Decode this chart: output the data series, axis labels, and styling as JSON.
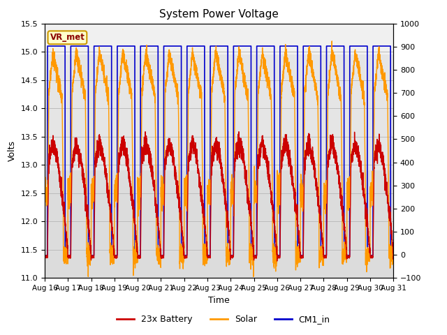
{
  "title": "System Power Voltage",
  "xlabel": "Time",
  "ylabel": "Volts",
  "ylim_left": [
    11.0,
    15.5
  ],
  "ylim_right": [
    -100,
    1000
  ],
  "yticks_left": [
    11.0,
    11.5,
    12.0,
    12.5,
    13.0,
    13.5,
    14.0,
    14.5,
    15.0,
    15.5
  ],
  "yticks_right": [
    -100,
    0,
    100,
    200,
    300,
    400,
    500,
    600,
    700,
    800,
    900,
    1000
  ],
  "xtick_labels": [
    "Aug 16",
    "Aug 17",
    "Aug 18",
    "Aug 19",
    "Aug 20",
    "Aug 21",
    "Aug 22",
    "Aug 23",
    "Aug 24",
    "Aug 25",
    "Aug 26",
    "Aug 27",
    "Aug 28",
    "Aug 29",
    "Aug 30",
    "Aug 31"
  ],
  "legend_labels": [
    "23x Battery",
    "Solar",
    "CM1_in"
  ],
  "legend_colors": [
    "#cc0000",
    "#ff9900",
    "#0000cc"
  ],
  "annotation_text": "VR_met",
  "annotation_color": "#8B0000",
  "annotation_bg": "#ffffcc",
  "grid_color": "#bbbbbb",
  "bg_color": "#dcdcdc",
  "band_color": "#e8e8e8",
  "n_days": 15,
  "day_start": 16,
  "pts_per_day": 288
}
